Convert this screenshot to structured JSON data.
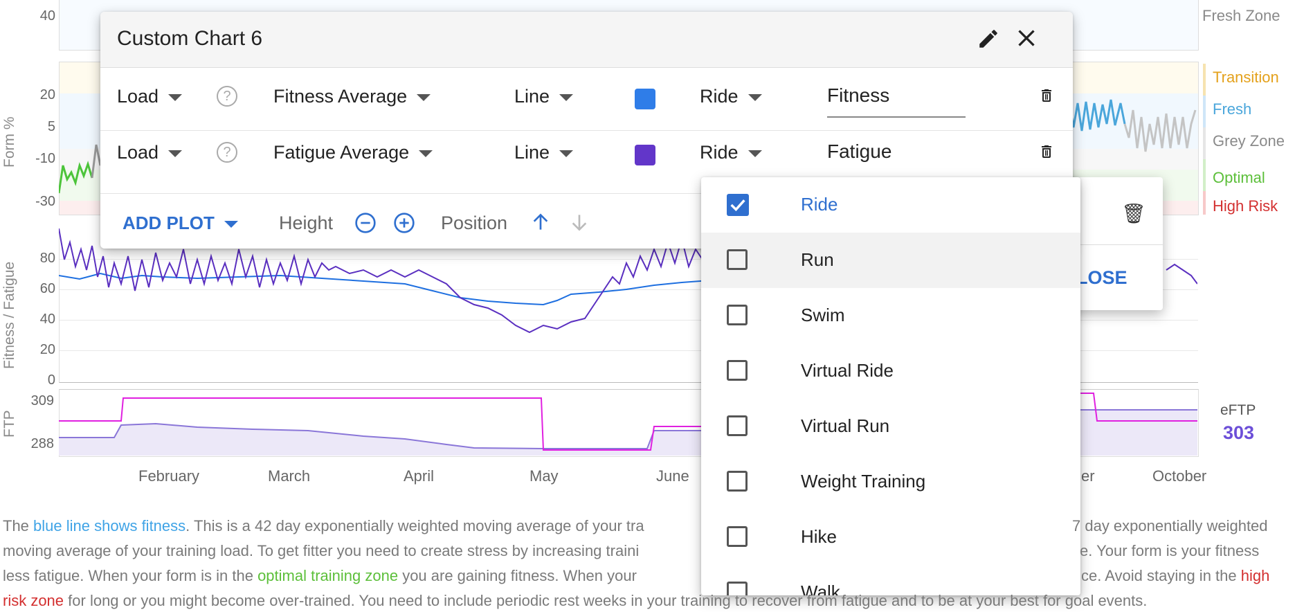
{
  "chart": {
    "form_axis_title": "Form %",
    "fitness_axis_title": "Fitness / Fatigue",
    "ftp_axis_title": "FTP",
    "top_tick": "40",
    "form_ticks": [
      "20",
      "5",
      "-10",
      "-30"
    ],
    "fitness_ticks": [
      "80",
      "60",
      "40",
      "20",
      "0"
    ],
    "ftp_ticks": [
      "309",
      "288"
    ],
    "months": [
      "February",
      "March",
      "April",
      "May",
      "June",
      "er",
      "October"
    ],
    "zones": {
      "fresh_zone_top": "Fresh Zone",
      "transition": "Transition",
      "fresh": "Fresh",
      "grey": "Grey Zone",
      "optimal": "Optimal",
      "high_risk": "High Risk"
    },
    "eftp_label": "eFTP",
    "eftp_value": "303",
    "colors": {
      "fitness": "#1e6fe0",
      "fatigue": "#5a2fc0",
      "ftp": "#e020e0",
      "eftp": "#6c4fd8"
    }
  },
  "dialog": {
    "title": "Custom Chart 6",
    "edit_icon": "pencil-icon",
    "close_icon": "close-icon",
    "plots": [
      {
        "source": "Load",
        "field": "Fitness Average",
        "type": "Line",
        "color": "#2f7de8",
        "sport": "Ride",
        "title": "Fitness"
      },
      {
        "source": "Load",
        "field": "Fatigue Average",
        "type": "Line",
        "color": "#6236c9",
        "sport": "Ride",
        "title": "Fatigue"
      }
    ],
    "add_plot": "ADD PLOT",
    "height_label": "Height",
    "position_label": "Position"
  },
  "background_popup": {
    "close_partial": "LOSE"
  },
  "sport_dropdown": {
    "options": [
      {
        "label": "Ride",
        "checked": true
      },
      {
        "label": "Run",
        "checked": false
      },
      {
        "label": "Swim",
        "checked": false
      },
      {
        "label": "Virtual Ride",
        "checked": false
      },
      {
        "label": "Virtual Run",
        "checked": false
      },
      {
        "label": "Weight Training",
        "checked": false
      },
      {
        "label": "Hike",
        "checked": false
      },
      {
        "label": "Walk",
        "checked": false
      }
    ]
  },
  "description": {
    "l1_a": "The ",
    "l1_b": "blue line shows fitness",
    "l1_c": ". This is a 42 day exponentially weighted moving average of your tra",
    "l1_d": "7 day exponentially weighted",
    "l2_a": "moving average of your training load. To get fitter you need to create stress by increasing traini",
    "l2_b": "e. Your form is your fitness",
    "l3_a": "less fatigue. When your form is in the ",
    "l3_b": "optimal training zone",
    "l3_c": " you are gaining fitness. When your",
    "l3_d": "ce. Avoid staying in the ",
    "l3_e": "high",
    "l4_a": "risk zone",
    "l4_b": " for long or you might become over-trained. You need to include periodic rest weeks in your training to recover from fatigue and to be at your best for goal events."
  }
}
